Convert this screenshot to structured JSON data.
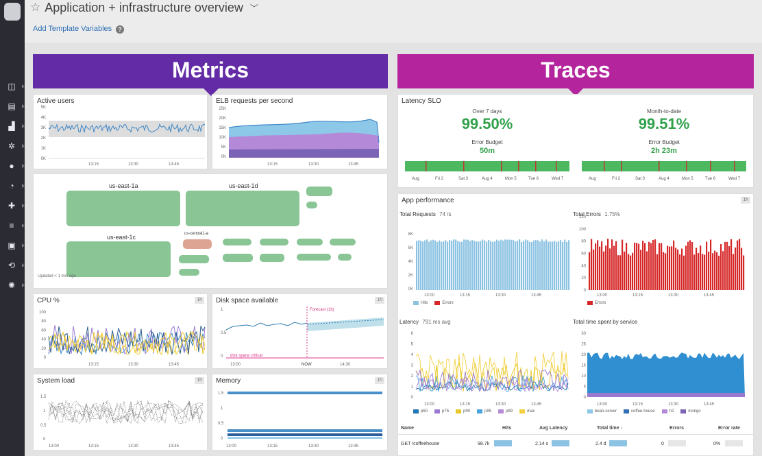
{
  "header": {
    "title": "Application + infrastructure overview",
    "template_link": "Add Template Variables",
    "help_glyph": "?"
  },
  "banners": {
    "metrics": {
      "label": "Metrics",
      "color": "#632ca6"
    },
    "traces": {
      "label": "Traces",
      "color": "#b4249d"
    }
  },
  "widgets": {
    "active_users": {
      "title": "Active users"
    },
    "elb": {
      "title": "ELB requests per second"
    },
    "hostmap": {
      "zones": [
        "us-east-1a",
        "us-east-1d",
        "us-east-1c",
        "us-central1-a"
      ],
      "updated": "Updated < 1 min ago"
    },
    "cpu": {
      "title": "CPU %",
      "badge": "1h"
    },
    "disk": {
      "title": "Disk space available",
      "badge": "1h",
      "forecast": "Forecast (1h)",
      "critical": "disk space critical",
      "now": "NOW"
    },
    "sysload": {
      "title": "System load",
      "badge": "1h"
    },
    "memory": {
      "title": "Memory",
      "badge": "1h"
    },
    "latency_slo": {
      "title": "Latency SLO",
      "left": {
        "caption": "Over 7 days",
        "value": "99.50%",
        "budget_label": "Error Budget",
        "budget": "50m"
      },
      "right": {
        "caption": "Month-to-date",
        "value": "99.51%",
        "budget_label": "Error Budget",
        "budget": "2h 23m"
      }
    },
    "app_perf": {
      "title": "App performance",
      "badge": "1h",
      "total_requests": "Total Requests",
      "total_requests_rate": "74 /s",
      "total_errors": "Total Errors",
      "total_errors_rate": "1.75%",
      "latency": "Latency",
      "latency_avg": "791 ms avg",
      "time_by_service": "Total time spent by service",
      "legend_hits": "Hits",
      "legend_errors": "Errors",
      "legend_errors2": "Errors",
      "latency_legend": [
        "p50",
        "p75",
        "p90",
        "p95",
        "p99",
        "max"
      ],
      "service_legend": [
        "bean-server",
        "coffee-house",
        "h2",
        "mongo"
      ],
      "table": {
        "headers": [
          "Name",
          "Hits",
          "Avg Latency",
          "Total time ↓",
          "Errors",
          "Error rate"
        ],
        "rows": [
          {
            "name": "GET /coffeehouse",
            "hits": "98.7k",
            "avg": "2.14 s",
            "total": "2.4 d",
            "errors": "0",
            "rate": "0%"
          }
        ]
      }
    }
  },
  "axis_labels": {
    "times3": [
      "13:15",
      "13:30",
      "13:45"
    ],
    "times4": [
      "13:00",
      "13:15",
      "13:30",
      "13:45"
    ],
    "disk_times": [
      "13:00",
      "NOW",
      "14:30"
    ],
    "days": [
      "Aug",
      "Fri 2",
      "Sat 3",
      "Aug 4",
      "Mon 5",
      "Tue 6",
      "Wed 7"
    ],
    "active_y": [
      "5K",
      "4K",
      "3K",
      "2K",
      "1K",
      "0K"
    ],
    "elb_y": [
      "25K",
      "20K",
      "15K",
      "10K",
      "5K",
      "0K"
    ],
    "cpu_y": [
      "100",
      "80",
      "60",
      "40",
      "20",
      "0"
    ],
    "disk_y": [
      "1",
      "0.5",
      "0"
    ],
    "load_y": [
      "1.5",
      "1",
      "0.5",
      "0"
    ],
    "mem_y": [
      "1.5",
      "1",
      "0.5",
      "0"
    ],
    "req_y": [
      "8K",
      "6K",
      "4K",
      "2K",
      "0K"
    ],
    "err_y": [
      "120",
      "100",
      "80",
      "60",
      "40",
      "20",
      "0"
    ],
    "lat_y": [
      "6",
      "5",
      "4",
      "3",
      "2",
      "1",
      "0"
    ],
    "svc_y": [
      "30",
      "25",
      "20",
      "15",
      "10",
      "5",
      "0"
    ]
  },
  "colors": {
    "green": "#2fa14a",
    "hit_blue": "#8dc3e2",
    "error_red": "#d62728",
    "area_blue": "#3d8ec9",
    "area_purple": "#9a7ad0"
  }
}
